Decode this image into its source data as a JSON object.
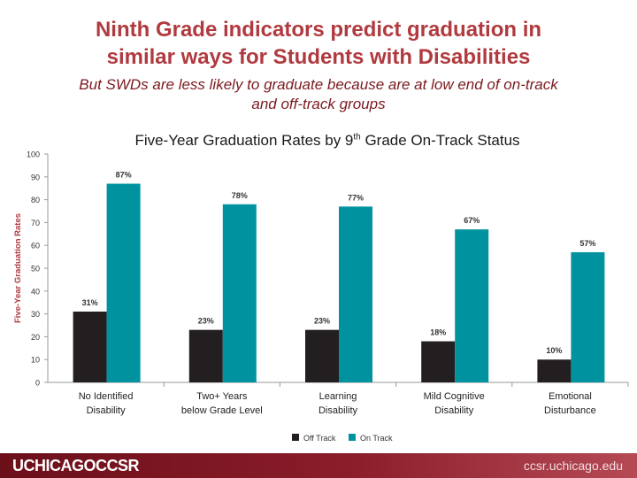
{
  "slide": {
    "title_line1": "Ninth Grade indicators predict graduation in",
    "title_line2": "similar ways for Students with Disabilities",
    "subtitle_line1": "But SWDs are less likely to graduate because are at low end of on-track",
    "subtitle_line2": "and off-track groups"
  },
  "chart_title": {
    "main": "Five-Year Graduation Rates by 9",
    "sup": "th",
    "rest": " Grade On-Track Status"
  },
  "chart_data": {
    "type": "bar",
    "title": "Five-Year Graduation Rates by 9th Grade On-Track Status",
    "ylabel": "Five-Year Graduation Rates",
    "xlabel": "",
    "ylim": [
      0,
      100
    ],
    "yticks": [
      0,
      10,
      20,
      30,
      40,
      50,
      60,
      70,
      80,
      90,
      100
    ],
    "categories": [
      [
        "No Identified",
        "Disability"
      ],
      [
        "Two+ Years",
        "below Grade Level"
      ],
      [
        "Learning",
        "Disability"
      ],
      [
        "Mild Cognitive",
        "Disability"
      ],
      [
        "Emotional",
        "Disturbance"
      ]
    ],
    "series": [
      {
        "name": "Off Track",
        "color": "#231f20",
        "values": [
          31,
          23,
          23,
          18,
          10
        ],
        "labels": [
          "31%",
          "23%",
          "23%",
          "18%",
          "10%"
        ]
      },
      {
        "name": "On Track",
        "color": "#00939f",
        "values": [
          87,
          78,
          77,
          67,
          57
        ],
        "labels": [
          "87%",
          "78%",
          "77%",
          "67%",
          "57%"
        ]
      }
    ],
    "legend_position": "bottom-center"
  },
  "footer": {
    "logo": "UCHICAGOCCSR",
    "url": "ccsr.uchicago.edu"
  },
  "colors": {
    "title": "#b03a3f",
    "subtitle": "#7a1a1f",
    "footer": "#8b1d2a"
  }
}
